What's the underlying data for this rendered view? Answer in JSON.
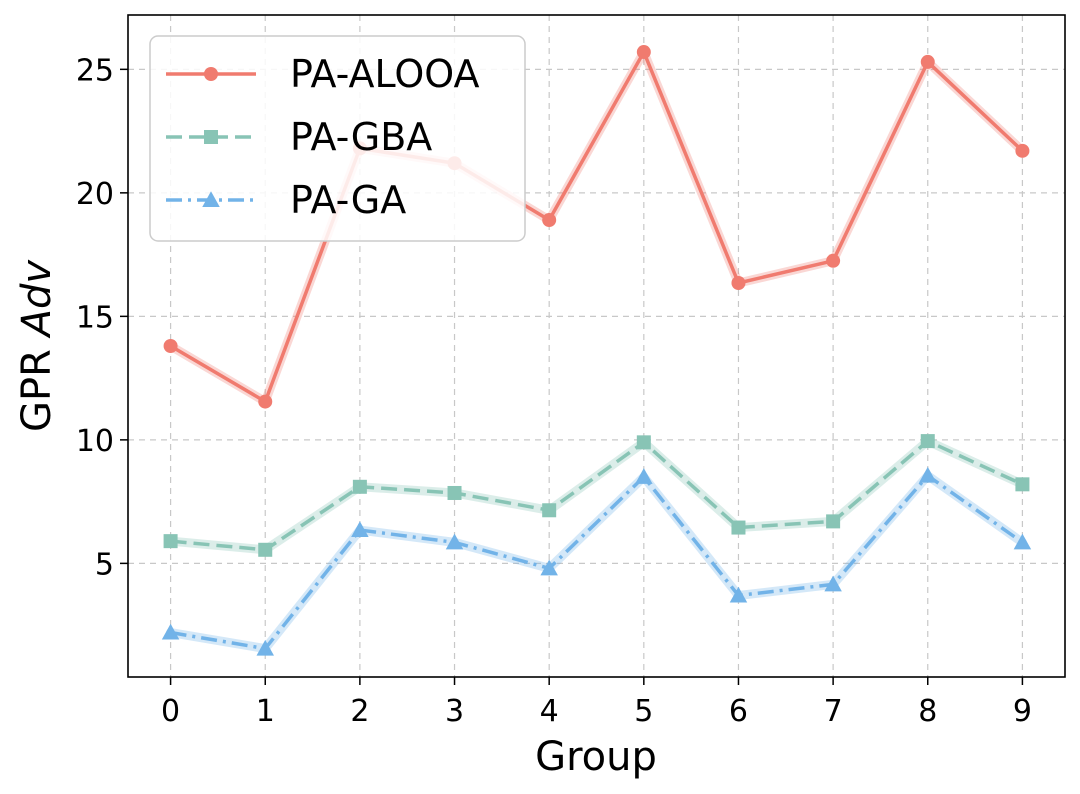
{
  "chart_data": {
    "type": "line",
    "title": "",
    "xlabel": "Group",
    "ylabel_main": "GPR ",
    "ylabel_italic": "Adv",
    "x": [
      0,
      1,
      2,
      3,
      4,
      5,
      6,
      7,
      8,
      9
    ],
    "xticks": [
      "0",
      "1",
      "2",
      "3",
      "4",
      "5",
      "6",
      "7",
      "8",
      "9"
    ],
    "xlim": [
      -0.45,
      9.45
    ],
    "ylim": [
      0.4,
      27.2
    ],
    "yticks": [
      5,
      10,
      15,
      20,
      25
    ],
    "ytick_labels": [
      "5",
      "10",
      "15",
      "20",
      "25"
    ],
    "grid": true,
    "legend_position": "top-left",
    "series": [
      {
        "name": "PA-ALOOA",
        "color": "#f07b6f",
        "marker": "circle",
        "linestyle": "solid",
        "values": [
          13.8,
          11.55,
          21.8,
          21.2,
          18.9,
          25.7,
          16.35,
          17.25,
          25.3,
          21.7
        ]
      },
      {
        "name": "PA-GBA",
        "color": "#88c4b5",
        "marker": "square",
        "linestyle": "dashed",
        "values": [
          5.9,
          5.55,
          8.1,
          7.85,
          7.15,
          9.9,
          6.45,
          6.7,
          9.95,
          8.2
        ]
      },
      {
        "name": "PA-GA",
        "color": "#72b3e8",
        "marker": "triangle",
        "linestyle": "dashdot",
        "values": [
          2.2,
          1.55,
          6.35,
          5.85,
          4.8,
          8.5,
          3.7,
          4.15,
          8.55,
          5.85
        ]
      }
    ]
  }
}
